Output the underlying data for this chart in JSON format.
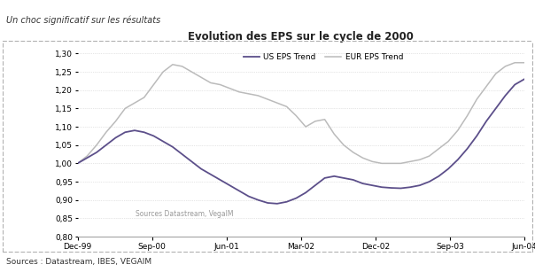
{
  "title": "Evolution des EPS sur le cycle de 2000",
  "header": "Un choc significatif sur les résultats",
  "footer": "Sources : Datastream, IBES, VEGAIM",
  "watermark": "Sources Datastream, VegaIM",
  "legend_us": "US EPS Trend",
  "legend_eur": "EUR EPS Trend",
  "us_color": "#5C4F8A",
  "eur_color": "#BBBBBB",
  "background_color": "#FFFFFF",
  "header_line_color": "#7B6BA0",
  "border_color": "#AAAACC",
  "x_tick_labels": [
    "Dec-99",
    "Sep-00",
    "Jun-01",
    "Mar-02",
    "Dec-02",
    "Sep-03",
    "Jun-04"
  ],
  "ylim": [
    0.8,
    1.32
  ],
  "yticks": [
    0.8,
    0.85,
    0.9,
    0.95,
    1.0,
    1.05,
    1.1,
    1.15,
    1.2,
    1.25,
    1.3
  ],
  "us_eps": [
    1.0,
    1.015,
    1.03,
    1.05,
    1.07,
    1.085,
    1.09,
    1.085,
    1.075,
    1.06,
    1.045,
    1.025,
    1.005,
    0.985,
    0.97,
    0.955,
    0.94,
    0.925,
    0.91,
    0.9,
    0.892,
    0.89,
    0.895,
    0.905,
    0.92,
    0.94,
    0.96,
    0.965,
    0.96,
    0.955,
    0.945,
    0.94,
    0.935,
    0.933,
    0.932,
    0.935,
    0.94,
    0.95,
    0.965,
    0.985,
    1.01,
    1.04,
    1.075,
    1.115,
    1.15,
    1.185,
    1.215,
    1.23
  ],
  "eur_eps": [
    1.0,
    1.02,
    1.05,
    1.085,
    1.115,
    1.15,
    1.165,
    1.18,
    1.215,
    1.25,
    1.27,
    1.265,
    1.25,
    1.235,
    1.22,
    1.215,
    1.205,
    1.195,
    1.19,
    1.185,
    1.175,
    1.165,
    1.155,
    1.13,
    1.1,
    1.115,
    1.12,
    1.08,
    1.05,
    1.03,
    1.015,
    1.005,
    1.0,
    1.0,
    1.0,
    1.005,
    1.01,
    1.02,
    1.04,
    1.06,
    1.09,
    1.13,
    1.175,
    1.21,
    1.245,
    1.265,
    1.275,
    1.275
  ]
}
